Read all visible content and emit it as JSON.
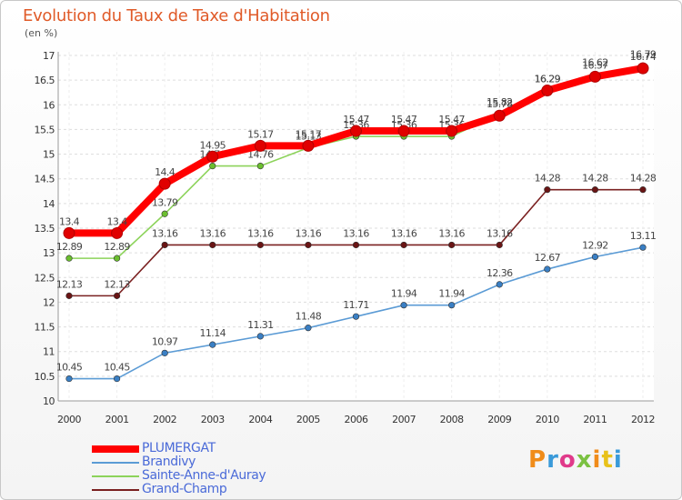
{
  "title": "Evolution du Taux de Taxe d'Habitation",
  "subtitle": "(en %)",
  "logo_text": "Proxiti",
  "chart_data": {
    "type": "line",
    "x": [
      "2000",
      "2001",
      "2002",
      "2003",
      "2004",
      "2005",
      "2006",
      "2007",
      "2008",
      "2009",
      "2010",
      "2011",
      "2012"
    ],
    "ylim": [
      10,
      17
    ],
    "yticks": [
      "10",
      "10.5",
      "11",
      "11.5",
      "12",
      "12.5",
      "13",
      "13.5",
      "14",
      "14.5",
      "15",
      "15.5",
      "16",
      "16.5",
      "17"
    ],
    "grid": true,
    "legend_position": "bottom-left",
    "series": [
      {
        "name": "PLUMERGAT",
        "color": "#ff0000",
        "marker": "#e00000",
        "values": [
          13.4,
          13.4,
          14.4,
          14.95,
          15.17,
          15.17,
          15.47,
          15.47,
          15.47,
          15.78,
          16.29,
          16.57,
          16.74
        ],
        "labels": [
          "13.4",
          "13.4",
          "14.4",
          "14.95",
          "15.17",
          "15.17",
          "15.47",
          "15.47",
          "15.47",
          "15.78",
          "16.29",
          "16.57",
          "16.74"
        ]
      },
      {
        "name": "Brandivy",
        "color": "#5b9bd5",
        "marker": "#3a7fc4",
        "values": [
          10.45,
          10.45,
          10.97,
          11.14,
          11.31,
          11.48,
          11.71,
          11.94,
          11.94,
          12.36,
          12.67,
          12.92,
          13.11
        ],
        "labels": [
          "10.45",
          "10.45",
          "10.97",
          "11.14",
          "11.31",
          "11.48",
          "11.71",
          "11.94",
          "11.94",
          "12.36",
          "12.67",
          "12.92",
          "13.11"
        ]
      },
      {
        "name": "Sainte-Anne-d'Auray",
        "color": "#8cd35a",
        "marker": "#6bbf2f",
        "values": [
          12.89,
          12.89,
          13.79,
          14.76,
          14.76,
          15.13,
          15.36,
          15.36,
          15.36,
          15.82,
          16.29,
          16.62,
          16.79
        ],
        "labels": [
          "12.89",
          "12.89",
          "13.79",
          "14.76",
          "14.76",
          "15.13",
          "15.36",
          "15.36",
          "15.36",
          "15.82",
          "16.29",
          "16.62",
          "16.79"
        ]
      },
      {
        "name": "Grand-Champ",
        "color": "#7a2020",
        "marker": "#6a1515",
        "values": [
          12.13,
          12.13,
          13.16,
          13.16,
          13.16,
          13.16,
          13.16,
          13.16,
          13.16,
          13.16,
          14.28,
          14.28,
          14.28
        ],
        "labels": [
          "12.13",
          "12.13",
          "13.16",
          "13.16",
          "13.16",
          "13.16",
          "13.16",
          "13.16",
          "13.16",
          "13.16",
          "14.28",
          "14.28",
          "14.28"
        ]
      }
    ]
  }
}
